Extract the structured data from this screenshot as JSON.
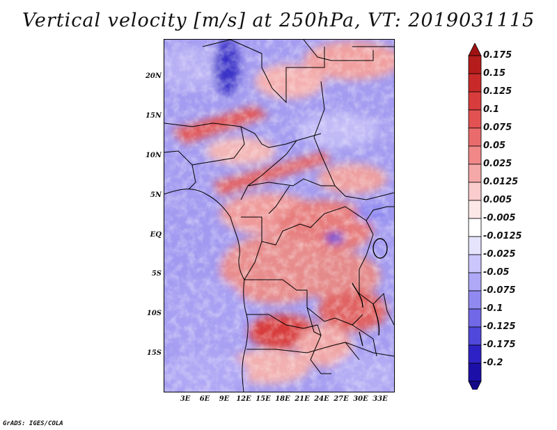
{
  "title": "Vertical velocity [m/s] at 250hPa, VT: 2019031115",
  "latitude_labels": [
    "20N",
    "15N",
    "10N",
    "5N",
    "EQ",
    "5S",
    "10S",
    "15S"
  ],
  "longitude_labels": [
    "3E",
    "6E",
    "9E",
    "12E",
    "15E",
    "18E",
    "21E",
    "24E",
    "27E",
    "30E",
    "33E"
  ],
  "colorbar": {
    "labels": [
      "0.175",
      "0.15",
      "0.125",
      "0.1",
      "0.075",
      "0.05",
      "0.025",
      "0.0125",
      "0.005",
      "-0.005",
      "-0.0125",
      "-0.025",
      "-0.05",
      "-0.075",
      "-0.1",
      "-0.125",
      "-0.175",
      "-0.2"
    ],
    "colors": [
      "#b51c1c",
      "#c82a2a",
      "#d83c3c",
      "#e35252",
      "#ea6b6b",
      "#f08888",
      "#f5a8a8",
      "#fbcccc",
      "#fde8e8",
      "#ffffff",
      "#e6e4fd",
      "#cbc6fb",
      "#aea8f6",
      "#908af0",
      "#7068e6",
      "#5048da",
      "#2e22c4",
      "#1c0fa8"
    ],
    "top_arrow_color": "#a01212",
    "bottom_arrow_color": "#14088a"
  },
  "credit": "GrADS: IGES/COLA"
}
